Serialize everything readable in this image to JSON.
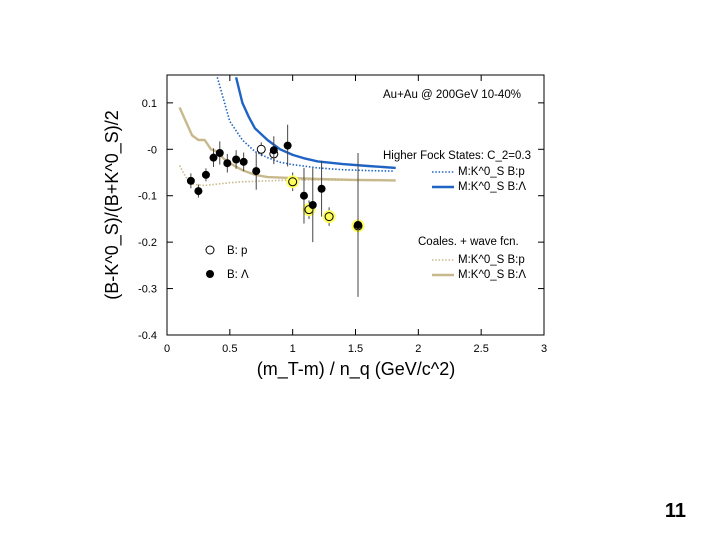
{
  "slide": {
    "number": "11"
  },
  "chart_data": {
    "type": "scatter",
    "xlabel": "(m_T-m) / n_q (GeV/c^2)",
    "ylabel": "(B-K^0_S)/(B+K^0_S)/2",
    "xlim": [
      0,
      3
    ],
    "ylim": [
      -0.4,
      0.16
    ],
    "x_ticks": [
      "0",
      "0.5",
      "1",
      "1.5",
      "2",
      "2.5",
      "3"
    ],
    "y_ticks": [
      "0.1",
      "-0",
      "-0.1",
      "-0.2",
      "-0.3",
      "-0.4"
    ],
    "grid": false,
    "annotation": "Au+Au @ 200GeV 10-40%",
    "legend_groups": {
      "higher_fock": "Higher Fock States: C_2=0.3",
      "coales": "Coales. + wave fcn."
    },
    "colors": {
      "blue": "#1f63c4",
      "tan": "#c8b98c",
      "yellow_highlight": "#ffff60"
    },
    "series": [
      {
        "name": "B: p",
        "marker": "open-circle",
        "points": [
          {
            "x": 0.75,
            "y": 0.0,
            "err": 0.015
          },
          {
            "x": 0.85,
            "y": -0.01,
            "err": 0.015
          },
          {
            "x": 1.0,
            "y": -0.07,
            "err": 0.02,
            "highlight": true
          },
          {
            "x": 1.13,
            "y": -0.13,
            "err": 0.02,
            "highlight": true
          },
          {
            "x": 1.29,
            "y": -0.145,
            "err": 0.02,
            "highlight": true
          },
          {
            "x": 1.52,
            "y": -0.165,
            "err": 0.015,
            "highlight": true
          }
        ]
      },
      {
        "name": "B: Λ",
        "marker": "filled-circle",
        "points": [
          {
            "x": 0.19,
            "y": -0.068,
            "err": 0.016
          },
          {
            "x": 0.25,
            "y": -0.09,
            "err": 0.014
          },
          {
            "x": 0.31,
            "y": -0.055,
            "err": 0.014
          },
          {
            "x": 0.37,
            "y": -0.018,
            "err": 0.02
          },
          {
            "x": 0.42,
            "y": -0.008,
            "err": 0.025
          },
          {
            "x": 0.48,
            "y": -0.03,
            "err": 0.02
          },
          {
            "x": 0.55,
            "y": -0.022,
            "err": 0.02
          },
          {
            "x": 0.61,
            "y": -0.027,
            "err": 0.02
          },
          {
            "x": 0.71,
            "y": -0.047,
            "err": 0.04
          },
          {
            "x": 0.85,
            "y": -0.002,
            "err": 0.03
          },
          {
            "x": 0.96,
            "y": 0.008,
            "err": 0.045
          },
          {
            "x": 1.09,
            "y": -0.1,
            "err": 0.06
          },
          {
            "x": 1.16,
            "y": -0.12,
            "err": 0.08
          },
          {
            "x": 1.23,
            "y": -0.085,
            "err": 0.06
          },
          {
            "x": 1.52,
            "y": -0.163,
            "err": 0.155
          }
        ]
      }
    ],
    "curves": [
      {
        "name": "M:K^0_S B:p",
        "group": "higher_fock",
        "color": "#1f63c4",
        "style": "dotted",
        "x": [
          0.4,
          0.5,
          0.6,
          0.7,
          0.8,
          0.9,
          1.0,
          1.2,
          1.4,
          1.6,
          1.8
        ],
        "y": [
          0.155,
          0.06,
          0.02,
          -0.005,
          -0.018,
          -0.028,
          -0.033,
          -0.04,
          -0.044,
          -0.046,
          -0.047
        ]
      },
      {
        "name": "M:K^0_S B:Λ",
        "group": "higher_fock",
        "color": "#1f63c4",
        "style": "solid",
        "x": [
          0.55,
          0.6,
          0.65,
          0.7,
          0.8,
          0.9,
          1.0,
          1.1,
          1.2,
          1.4,
          1.6,
          1.82
        ],
        "y": [
          0.155,
          0.1,
          0.07,
          0.045,
          0.02,
          0.0,
          -0.012,
          -0.02,
          -0.026,
          -0.032,
          -0.036,
          -0.04
        ]
      },
      {
        "name": "M:K^0_S B:p",
        "group": "coales",
        "color": "#c8b98c",
        "style": "dotted",
        "x": [
          0.1,
          0.15,
          0.2,
          0.3,
          0.4,
          0.5,
          0.6,
          0.8,
          1.0,
          1.2,
          1.5,
          1.82
        ],
        "y": [
          -0.035,
          -0.06,
          -0.075,
          -0.078,
          -0.075,
          -0.072,
          -0.07,
          -0.068,
          -0.066,
          -0.066,
          -0.067,
          -0.068
        ]
      },
      {
        "name": "M:K^0_S B:Λ",
        "group": "coales",
        "color": "#c8b98c",
        "style": "solid",
        "x": [
          0.1,
          0.15,
          0.2,
          0.25,
          0.3,
          0.35,
          0.4,
          0.45,
          0.5,
          0.6,
          0.7,
          0.8,
          1.0,
          1.2,
          1.5,
          1.82
        ],
        "y": [
          0.09,
          0.06,
          0.03,
          0.02,
          0.02,
          0.0,
          -0.005,
          -0.02,
          -0.03,
          -0.045,
          -0.055,
          -0.06,
          -0.062,
          -0.064,
          -0.066,
          -0.067
        ]
      }
    ]
  }
}
